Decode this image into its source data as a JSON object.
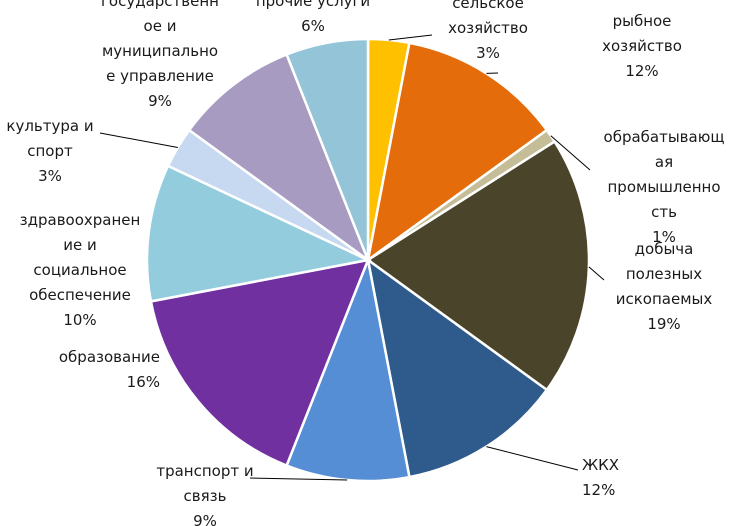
{
  "chart_data": {
    "type": "pie",
    "start_angle_deg": 0,
    "direction": "clockwise",
    "slices": [
      {
        "name": "сельское хозяйство",
        "label_lines": [
          "сельское",
          "хозяйство",
          "3%"
        ],
        "value": 3,
        "color": "#FFC000"
      },
      {
        "name": "рыбное хозяйство",
        "label_lines": [
          "рыбное",
          "хозяйство",
          "12%"
        ],
        "value": 12,
        "color": "#E46C0A"
      },
      {
        "name": "обрабатывающая промышленность",
        "label_lines": [
          "обрабатывающ",
          "ая",
          "промышленно",
          "сть",
          "1%"
        ],
        "value": 1,
        "color": "#C4BD97"
      },
      {
        "name": "добыча полезных ископаемых",
        "label_lines": [
          "добыча",
          "полезных",
          "ископаемых",
          "19%"
        ],
        "value": 19,
        "color": "#4A452A"
      },
      {
        "name": "ЖКХ",
        "label_lines": [
          "ЖКХ",
          "12%"
        ],
        "value": 12,
        "color": "#2E5A8C"
      },
      {
        "name": "транспорт и связь",
        "label_lines": [
          "транспорт и",
          "связь",
          "9%"
        ],
        "value": 9,
        "color": "#558ED5"
      },
      {
        "name": "образование",
        "label_lines": [
          "образование",
          "16%"
        ],
        "value": 16,
        "color": "#7030A0"
      },
      {
        "name": "здравоохранение и социальное обеспечение",
        "label_lines": [
          "здравоохранен",
          "ие и",
          "социальное",
          "обеспечение",
          "10%"
        ],
        "value": 10,
        "color": "#93CDDD"
      },
      {
        "name": "культура и спорт",
        "label_lines": [
          "культура и",
          "спорт",
          "3%"
        ],
        "value": 3,
        "color": "#C6D9F1"
      },
      {
        "name": "государственное и муниципальное управление",
        "label_lines": [
          "государственн",
          "ое и",
          "муниципально",
          "е управление",
          "9%"
        ],
        "value": 9,
        "color": "#A89BC2"
      },
      {
        "name": "прочие услуги",
        "label_lines": [
          "прочие услуги",
          "6%"
        ],
        "value": 6,
        "color": "#93C4D7"
      }
    ]
  }
}
